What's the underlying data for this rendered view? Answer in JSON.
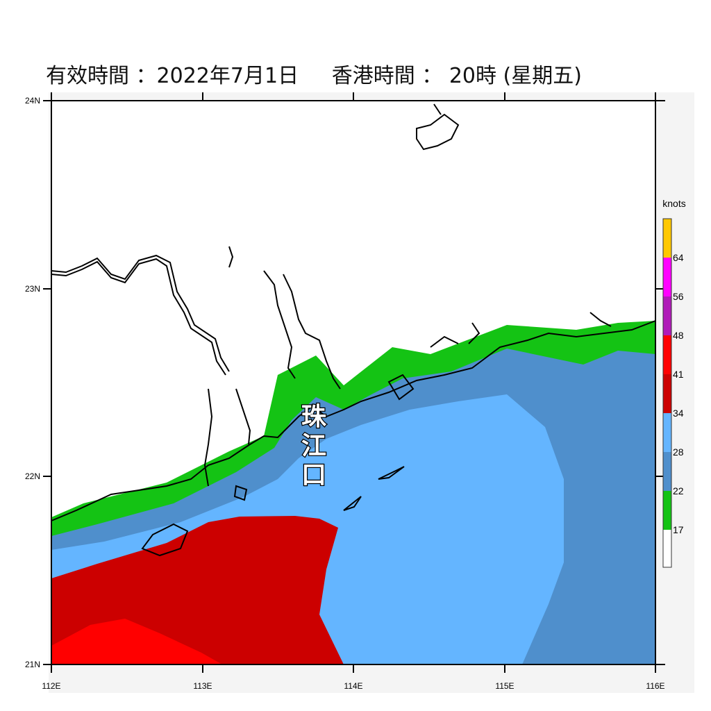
{
  "title": {
    "valid_label": "有效時間",
    "date": "2022年7月1日",
    "hk_label": "香港時間",
    "hour": "20時 (星期五)"
  },
  "map": {
    "region_label": "珠江口",
    "lat_ticks": [
      "24N",
      "23N",
      "22N",
      "21N"
    ],
    "lon_ticks": [
      "112E",
      "113E",
      "114E",
      "115E",
      "116E"
    ],
    "lon_range": [
      112,
      116
    ],
    "lat_range": [
      21,
      24
    ]
  },
  "legend": {
    "unit": "knots",
    "levels": [
      "64",
      "56",
      "48",
      "41",
      "34",
      "28",
      "22",
      "17"
    ],
    "colors": [
      "#ffc800",
      "#ff00ff",
      "#b01ab8",
      "#ff0000",
      "#cc0000",
      "#64b5ff",
      "#4f8fcc",
      "#14c314",
      "#ffffff"
    ]
  },
  "colors": {
    "bg": "#f4f4f4",
    "coast": "#000000"
  }
}
